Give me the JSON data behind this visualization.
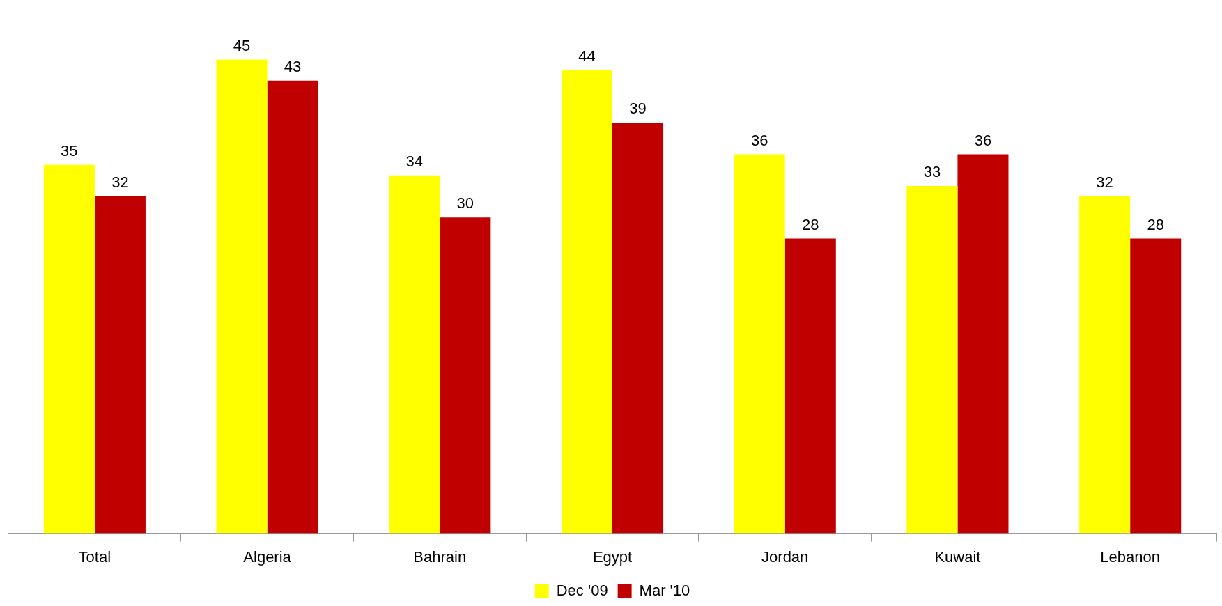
{
  "chart_data": {
    "type": "bar",
    "categories": [
      "Total",
      "Algeria",
      "Bahrain",
      "Egypt",
      "Jordan",
      "Kuwait",
      "Lebanon"
    ],
    "series": [
      {
        "name": "Dec '09",
        "color": "#ffff00",
        "values": [
          35,
          45,
          34,
          44,
          36,
          33,
          32
        ]
      },
      {
        "name": "Mar '10",
        "color": "#c00000",
        "values": [
          32,
          43,
          30,
          39,
          28,
          36,
          28
        ]
      }
    ],
    "data_labels": true,
    "legend": "bottom",
    "grid": false,
    "tick_labels": "x"
  }
}
